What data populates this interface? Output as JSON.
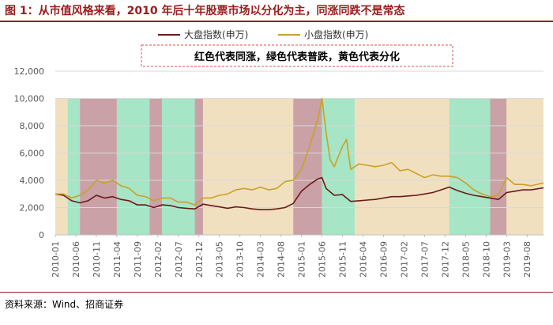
{
  "header": {
    "title": "图 1：从市值风格来看，2010 年后十年股票市场以分化为主，同涨同跌不是常态"
  },
  "footer": {
    "source": "资料来源：Wind、招商证券"
  },
  "chart_data": {
    "type": "line",
    "title": "",
    "xlabel": "",
    "ylabel": "",
    "ylim": [
      0,
      12000
    ],
    "yticks": [
      "0",
      "2,000",
      "4,000",
      "6,000",
      "8,000",
      "10,000",
      "12,000"
    ],
    "xticks": [
      "2010-01",
      "2010-06",
      "2010-11",
      "2011-04",
      "2011-09",
      "2012-02",
      "2012-07",
      "2012-12",
      "2013-05",
      "2013-10",
      "2014-03",
      "2014-08",
      "2015-01",
      "2015-06",
      "2015-11",
      "2016-04",
      "2016-09",
      "2017-02",
      "2017-07",
      "2017-12",
      "2018-05",
      "2018-10",
      "2019-03",
      "2019-08"
    ],
    "grid": true,
    "legend_position": "top-center",
    "annotation": "红色代表同涨，绿色代表普跌，黄色代表分化",
    "regime_colors": {
      "rise": "#c9a1a6",
      "fall": "#a6e5c5",
      "diverge": "#f1e0c0"
    },
    "regimes": [
      {
        "type": "diverge",
        "start": "2010-01",
        "end": "2010-04"
      },
      {
        "type": "fall",
        "start": "2010-04",
        "end": "2010-07"
      },
      {
        "type": "rise",
        "start": "2010-07",
        "end": "2011-04"
      },
      {
        "type": "fall",
        "start": "2011-04",
        "end": "2011-12"
      },
      {
        "type": "rise",
        "start": "2011-12",
        "end": "2012-03"
      },
      {
        "type": "fall",
        "start": "2012-03",
        "end": "2012-11"
      },
      {
        "type": "rise",
        "start": "2012-11",
        "end": "2013-01"
      },
      {
        "type": "diverge",
        "start": "2013-01",
        "end": "2014-11"
      },
      {
        "type": "rise",
        "start": "2014-11",
        "end": "2015-06"
      },
      {
        "type": "fall",
        "start": "2015-06",
        "end": "2016-02"
      },
      {
        "type": "diverge",
        "start": "2016-02",
        "end": "2018-01"
      },
      {
        "type": "fall",
        "start": "2018-01",
        "end": "2018-11"
      },
      {
        "type": "rise",
        "start": "2018-11",
        "end": "2019-03"
      },
      {
        "type": "diverge",
        "start": "2019-03",
        "end": "2019-12"
      }
    ],
    "series": [
      {
        "name": "大盘指数(申万)",
        "color": "#6b1a1a",
        "x": [
          "2010-01",
          "2010-03",
          "2010-05",
          "2010-07",
          "2010-09",
          "2010-11",
          "2011-01",
          "2011-03",
          "2011-05",
          "2011-07",
          "2011-09",
          "2011-11",
          "2012-01",
          "2012-03",
          "2012-05",
          "2012-07",
          "2012-09",
          "2012-11",
          "2013-01",
          "2013-03",
          "2013-05",
          "2013-07",
          "2013-09",
          "2013-11",
          "2014-01",
          "2014-03",
          "2014-05",
          "2014-07",
          "2014-09",
          "2014-11",
          "2015-01",
          "2015-03",
          "2015-05",
          "2015-06",
          "2015-07",
          "2015-09",
          "2015-11",
          "2016-01",
          "2016-03",
          "2016-05",
          "2016-07",
          "2016-09",
          "2016-11",
          "2017-01",
          "2017-03",
          "2017-05",
          "2017-07",
          "2017-09",
          "2017-11",
          "2018-01",
          "2018-03",
          "2018-05",
          "2018-07",
          "2018-09",
          "2018-11",
          "2019-01",
          "2019-03",
          "2019-05",
          "2019-07",
          "2019-09",
          "2019-12"
        ],
        "values": [
          3000,
          2900,
          2500,
          2350,
          2500,
          2900,
          2700,
          2800,
          2600,
          2500,
          2200,
          2200,
          2000,
          2200,
          2150,
          2000,
          1950,
          1900,
          2250,
          2150,
          2050,
          1950,
          2050,
          2000,
          1900,
          1850,
          1850,
          1900,
          2000,
          2300,
          3200,
          3700,
          4100,
          4200,
          3400,
          2900,
          2950,
          2450,
          2500,
          2550,
          2600,
          2700,
          2800,
          2800,
          2850,
          2900,
          3000,
          3100,
          3300,
          3500,
          3250,
          3050,
          2900,
          2800,
          2700,
          2600,
          3100,
          3200,
          3300,
          3300,
          3450
        ]
      },
      {
        "name": "小盘指数(申万)",
        "color": "#c9a227",
        "x": [
          "2010-01",
          "2010-03",
          "2010-05",
          "2010-07",
          "2010-09",
          "2010-11",
          "2011-01",
          "2011-03",
          "2011-05",
          "2011-07",
          "2011-09",
          "2011-11",
          "2012-01",
          "2012-03",
          "2012-05",
          "2012-07",
          "2012-09",
          "2012-11",
          "2013-01",
          "2013-03",
          "2013-05",
          "2013-07",
          "2013-09",
          "2013-11",
          "2014-01",
          "2014-03",
          "2014-05",
          "2014-07",
          "2014-09",
          "2014-11",
          "2015-01",
          "2015-03",
          "2015-05",
          "2015-06",
          "2015-07",
          "2015-08",
          "2015-09",
          "2015-11",
          "2015-12",
          "2016-01",
          "2016-03",
          "2016-05",
          "2016-07",
          "2016-09",
          "2016-11",
          "2017-01",
          "2017-03",
          "2017-05",
          "2017-07",
          "2017-09",
          "2017-11",
          "2018-01",
          "2018-03",
          "2018-05",
          "2018-07",
          "2018-09",
          "2018-11",
          "2019-01",
          "2019-03",
          "2019-05",
          "2019-07",
          "2019-09",
          "2019-12"
        ],
        "values": [
          3000,
          3000,
          2700,
          2900,
          3300,
          4000,
          3800,
          4000,
          3600,
          3400,
          2900,
          2800,
          2500,
          2700,
          2700,
          2400,
          2400,
          2200,
          2700,
          2700,
          2900,
          3000,
          3300,
          3400,
          3300,
          3500,
          3300,
          3400,
          3900,
          4000,
          4800,
          6500,
          8500,
          10000,
          7500,
          5500,
          5000,
          6500,
          7000,
          4800,
          5200,
          5100,
          5000,
          5100,
          5300,
          4700,
          4800,
          4500,
          4200,
          4400,
          4300,
          4300,
          4200,
          3800,
          3300,
          3000,
          2800,
          2900,
          4200,
          3700,
          3700,
          3600,
          3800
        ]
      }
    ]
  }
}
